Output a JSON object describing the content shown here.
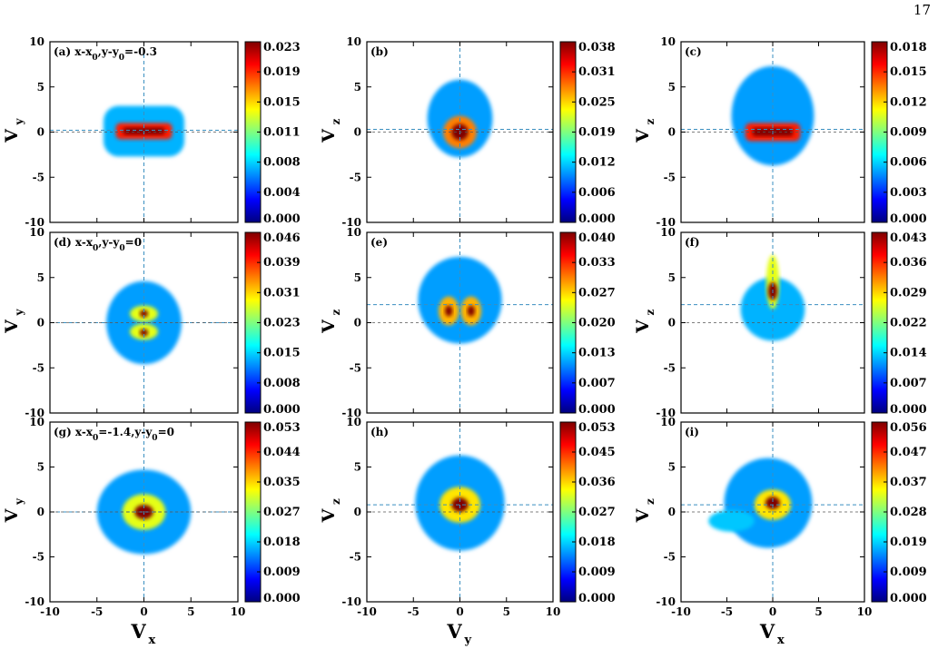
{
  "page_number": "17",
  "colors": {
    "colormap": [
      "#00007f",
      "#0000ff",
      "#0080ff",
      "#00ffff",
      "#7fff7f",
      "#ffff00",
      "#ff8000",
      "#ff0000",
      "#7f0000"
    ],
    "guide_line": "#3a8fc0",
    "frame": "#000000"
  },
  "axes": {
    "ticks": [
      "-10",
      "-5",
      "0",
      "5",
      "10"
    ],
    "x_labels": {
      "vx_main": "V",
      "vx_sub": "x",
      "vy_main": "V",
      "vy_sub": "y"
    },
    "y_labels": {
      "vy_main": "V",
      "vy_sub": "y",
      "vz_main": "V",
      "vz_sub": "z"
    }
  },
  "chart_data": [
    {
      "type": "heatmap",
      "panel": "(a)",
      "label_parts": [
        "(a) x-x",
        "0",
        ",y-y",
        "0",
        "=-0.3"
      ],
      "x_axis": "V_x",
      "y_axis": "V_y",
      "xlim": [
        -10,
        10
      ],
      "ylim": [
        -10,
        10
      ],
      "colorbar": [
        "0.023",
        "0.019",
        "0.015",
        "0.011",
        "0.008",
        "0.004",
        "0.000"
      ],
      "guide": {
        "x": 0,
        "y": 0.2
      },
      "blobs": [
        {
          "x": 0,
          "y": 0.1,
          "sx": 4.3,
          "sy": 2.8,
          "v": 0.3,
          "shape": "box"
        },
        {
          "x": 0,
          "y": 0.1,
          "sx": 3.0,
          "sy": 0.9,
          "v": 0.85,
          "shape": "box"
        },
        {
          "x": 0,
          "y": 0.1,
          "sx": 2.2,
          "sy": 0.4,
          "v": 1.0,
          "shape": "box"
        }
      ]
    },
    {
      "type": "heatmap",
      "panel": "(b)",
      "label_parts": [
        "(b)"
      ],
      "x_axis": "V_y",
      "y_axis": "V_z",
      "xlim": [
        -10,
        10
      ],
      "ylim": [
        -10,
        10
      ],
      "colorbar": [
        "0.038",
        "0.031",
        "0.025",
        "0.019",
        "0.012",
        "0.006",
        "0.000"
      ],
      "guide": {
        "x": 0,
        "y": 0.3
      },
      "blobs": [
        {
          "x": 0,
          "y": 1.5,
          "sx": 3.5,
          "sy": 4.3,
          "v": 0.28,
          "shape": "ell"
        },
        {
          "x": 0,
          "y": 0,
          "sx": 1.8,
          "sy": 1.8,
          "v": 0.75,
          "shape": "ell"
        },
        {
          "x": 0,
          "y": 0,
          "sx": 0.9,
          "sy": 0.9,
          "v": 1.0,
          "shape": "ell"
        }
      ]
    },
    {
      "type": "heatmap",
      "panel": "(c)",
      "label_parts": [
        "(c)"
      ],
      "x_axis": "V_x",
      "y_axis": "V_z",
      "xlim": [
        -10,
        10
      ],
      "ylim": [
        -10,
        10
      ],
      "colorbar": [
        "0.018",
        "0.015",
        "0.012",
        "0.009",
        "0.006",
        "0.003",
        "0.000"
      ],
      "guide": {
        "x": 0,
        "y": 0.3
      },
      "blobs": [
        {
          "x": 0,
          "y": 1.8,
          "sx": 4.5,
          "sy": 5.5,
          "v": 0.28,
          "shape": "ell"
        },
        {
          "x": 0,
          "y": 0,
          "sx": 3.0,
          "sy": 1.0,
          "v": 0.85,
          "shape": "box"
        },
        {
          "x": 0,
          "y": 0,
          "sx": 2.2,
          "sy": 0.45,
          "v": 1.0,
          "shape": "box"
        }
      ]
    },
    {
      "type": "heatmap",
      "panel": "(d)",
      "label_parts": [
        "(d) x-x",
        "0",
        ",y-y",
        "0",
        "=0"
      ],
      "x_axis": "V_x",
      "y_axis": "V_y",
      "xlim": [
        -10,
        10
      ],
      "ylim": [
        -10,
        10
      ],
      "colorbar": [
        "0.046",
        "0.039",
        "0.031",
        "0.023",
        "0.015",
        "0.008",
        "0.000"
      ],
      "guide": {
        "x": 0,
        "y": 0
      },
      "blobs": [
        {
          "x": 0,
          "y": 0,
          "sx": 4.0,
          "sy": 4.6,
          "v": 0.28,
          "shape": "ell"
        },
        {
          "x": 0,
          "y": 1.0,
          "sx": 1.5,
          "sy": 0.9,
          "v": 0.6,
          "shape": "ell"
        },
        {
          "x": 0,
          "y": -1.0,
          "sx": 1.5,
          "sy": 0.9,
          "v": 0.6,
          "shape": "ell"
        },
        {
          "x": 0,
          "y": 1.0,
          "sx": 0.45,
          "sy": 0.4,
          "v": 1.0,
          "shape": "ell"
        },
        {
          "x": 0,
          "y": -1.1,
          "sx": 0.45,
          "sy": 0.4,
          "v": 1.0,
          "shape": "ell"
        }
      ]
    },
    {
      "type": "heatmap",
      "panel": "(e)",
      "label_parts": [
        "(e)"
      ],
      "x_axis": "V_y",
      "y_axis": "V_z",
      "xlim": [
        -10,
        10
      ],
      "ylim": [
        -10,
        10
      ],
      "colorbar": [
        "0.040",
        "0.033",
        "0.027",
        "0.020",
        "0.013",
        "0.007",
        "0.000"
      ],
      "guide": {
        "x": 0,
        "y": 2.0
      },
      "blobs": [
        {
          "x": 0,
          "y": 2.5,
          "sx": 4.5,
          "sy": 4.8,
          "v": 0.28,
          "shape": "ell"
        },
        {
          "x": -1.2,
          "y": 1.3,
          "sx": 1.1,
          "sy": 1.6,
          "v": 0.7,
          "shape": "ell"
        },
        {
          "x": 1.2,
          "y": 1.3,
          "sx": 1.1,
          "sy": 1.6,
          "v": 0.7,
          "shape": "ell"
        },
        {
          "x": -1.2,
          "y": 1.3,
          "sx": 0.4,
          "sy": 0.6,
          "v": 1.0,
          "shape": "ell"
        },
        {
          "x": 1.2,
          "y": 1.3,
          "sx": 0.4,
          "sy": 0.6,
          "v": 1.0,
          "shape": "ell"
        }
      ]
    },
    {
      "type": "heatmap",
      "panel": "(f)",
      "label_parts": [
        "(f)"
      ],
      "x_axis": "V_x",
      "y_axis": "V_z",
      "xlim": [
        -10,
        10
      ],
      "ylim": [
        -10,
        10
      ],
      "colorbar": [
        "0.043",
        "0.036",
        "0.029",
        "0.022",
        "0.014",
        "0.007",
        "0.000"
      ],
      "guide": {
        "x": 0,
        "y": 2.0
      },
      "blobs": [
        {
          "x": 0,
          "y": 1.5,
          "sx": 3.5,
          "sy": 3.5,
          "v": 0.3,
          "shape": "ell"
        },
        {
          "x": 0,
          "y": 4.5,
          "sx": 0.7,
          "sy": 3.0,
          "v": 0.6,
          "shape": "ell"
        },
        {
          "x": 0,
          "y": 3.5,
          "sx": 0.5,
          "sy": 1.0,
          "v": 1.0,
          "shape": "ell"
        }
      ]
    },
    {
      "type": "heatmap",
      "panel": "(g)",
      "label_parts": [
        "(g) x-x",
        "0",
        "=-1.4,y-y",
        "0",
        "=0"
      ],
      "x_axis": "V_x",
      "y_axis": "V_y",
      "xlim": [
        -10,
        10
      ],
      "ylim": [
        -10,
        10
      ],
      "colorbar": [
        "0.053",
        "0.044",
        "0.035",
        "0.027",
        "0.018",
        "0.009",
        "0.000"
      ],
      "guide": {
        "x": 0,
        "y": 0
      },
      "blobs": [
        {
          "x": 0,
          "y": 0,
          "sx": 5.0,
          "sy": 4.7,
          "v": 0.28,
          "shape": "ell"
        },
        {
          "x": 0,
          "y": 0,
          "sx": 2.3,
          "sy": 2.0,
          "v": 0.6,
          "shape": "ell"
        },
        {
          "x": 0,
          "y": 0,
          "sx": 1.0,
          "sy": 0.8,
          "v": 1.0,
          "shape": "ell"
        }
      ]
    },
    {
      "type": "heatmap",
      "panel": "(h)",
      "label_parts": [
        "(h)"
      ],
      "x_axis": "V_y",
      "y_axis": "V_z",
      "xlim": [
        -10,
        10
      ],
      "ylim": [
        -10,
        10
      ],
      "colorbar": [
        "0.053",
        "0.045",
        "0.036",
        "0.027",
        "0.018",
        "0.009",
        "0.000"
      ],
      "guide": {
        "x": 0,
        "y": 0.8
      },
      "blobs": [
        {
          "x": 0,
          "y": 1.0,
          "sx": 4.8,
          "sy": 5.3,
          "v": 0.28,
          "shape": "ell"
        },
        {
          "x": 0,
          "y": 0.8,
          "sx": 2.2,
          "sy": 2.0,
          "v": 0.65,
          "shape": "ell"
        },
        {
          "x": 0,
          "y": 0.8,
          "sx": 0.9,
          "sy": 0.8,
          "v": 1.0,
          "shape": "ell"
        }
      ]
    },
    {
      "type": "heatmap",
      "panel": "(i)",
      "label_parts": [
        "(i)"
      ],
      "x_axis": "V_x",
      "y_axis": "V_z",
      "xlim": [
        -10,
        10
      ],
      "ylim": [
        -10,
        10
      ],
      "colorbar": [
        "0.056",
        "0.047",
        "0.037",
        "0.028",
        "0.019",
        "0.009",
        "0.000"
      ],
      "guide": {
        "x": 0,
        "y": 0.8
      },
      "blobs": [
        {
          "x": -0.5,
          "y": 1.0,
          "sx": 4.8,
          "sy": 5.0,
          "v": 0.28,
          "shape": "ell"
        },
        {
          "x": -4.5,
          "y": -1.0,
          "sx": 2.5,
          "sy": 1.2,
          "v": 0.32,
          "shape": "ell"
        },
        {
          "x": 0,
          "y": 0.8,
          "sx": 2.0,
          "sy": 1.7,
          "v": 0.65,
          "shape": "ell"
        },
        {
          "x": 0,
          "y": 1.0,
          "sx": 0.8,
          "sy": 0.7,
          "v": 1.0,
          "shape": "ell"
        }
      ]
    }
  ]
}
